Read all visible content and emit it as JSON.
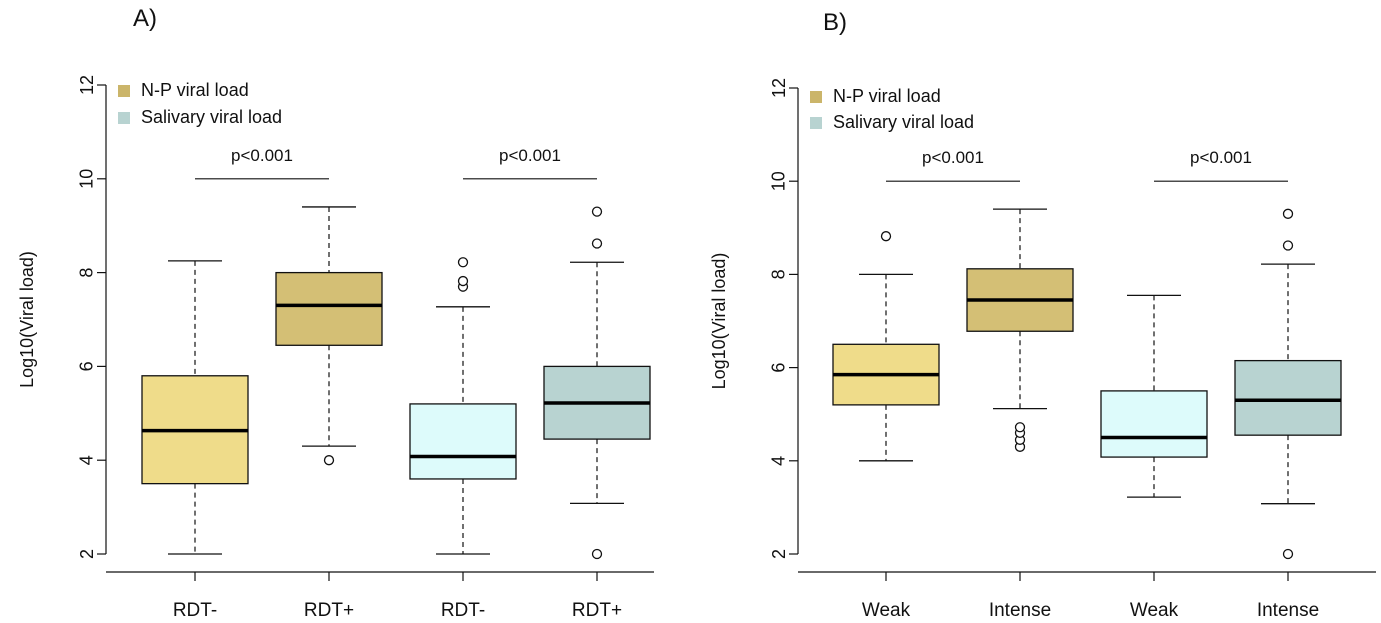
{
  "chart_data": [
    {
      "type": "boxplot",
      "panel_label": "A)",
      "ylabel": "Log10(Viral load)",
      "ylim": [
        2,
        12
      ],
      "yticks": [
        2,
        4,
        6,
        8,
        10,
        12
      ],
      "categories": [
        "RDT-",
        "RDT+",
        "RDT-",
        "RDT+"
      ],
      "legend": {
        "position": "top-left",
        "entries": [
          {
            "label": "N-P viral load",
            "color": "#cbb56a"
          },
          {
            "label": "Salivary viral load",
            "color": "#b8d3d1"
          }
        ]
      },
      "boxes": [
        {
          "category": "RDT-",
          "group": "N-P viral load",
          "color": "#efdc8a",
          "whisker_low": 2.0,
          "q1": 3.5,
          "median": 4.63,
          "q3": 5.8,
          "whisker_high": 8.25,
          "outliers": []
        },
        {
          "category": "RDT+",
          "group": "N-P viral load",
          "color": "#d4bf75",
          "whisker_low": 4.3,
          "q1": 6.45,
          "median": 7.3,
          "q3": 8.0,
          "whisker_high": 9.4,
          "outliers": [
            4.0
          ]
        },
        {
          "category": "RDT-",
          "group": "Salivary viral load",
          "color": "#ddfbfb",
          "whisker_low": 2.0,
          "q1": 3.6,
          "median": 4.08,
          "q3": 5.2,
          "whisker_high": 7.27,
          "outliers": [
            7.7,
            7.82,
            8.22
          ]
        },
        {
          "category": "RDT+",
          "group": "Salivary viral load",
          "color": "#b8d3d1",
          "whisker_low": 3.08,
          "q1": 4.45,
          "median": 5.22,
          "q3": 6.0,
          "whisker_high": 8.22,
          "outliers": [
            2.0,
            8.62,
            9.3
          ]
        }
      ],
      "comparisons": [
        {
          "pair": [
            0,
            1
          ],
          "label": "p<0.001",
          "y": 10.0
        },
        {
          "pair": [
            2,
            3
          ],
          "label": "p<0.001",
          "y": 10.0
        }
      ]
    },
    {
      "type": "boxplot",
      "panel_label": "B)",
      "ylabel": "Log10(Viral load)",
      "ylim": [
        2,
        12
      ],
      "yticks": [
        2,
        4,
        6,
        8,
        10,
        12
      ],
      "categories": [
        "Weak",
        "Intense",
        "Weak",
        "Intense"
      ],
      "legend": {
        "position": "top-left",
        "entries": [
          {
            "label": "N-P viral load",
            "color": "#cbb56a"
          },
          {
            "label": "Salivary viral load",
            "color": "#b8d3d1"
          }
        ]
      },
      "boxes": [
        {
          "category": "Weak",
          "group": "N-P viral load",
          "color": "#efdc8a",
          "whisker_low": 4.0,
          "q1": 5.2,
          "median": 5.85,
          "q3": 6.5,
          "whisker_high": 8.0,
          "outliers": [
            8.82
          ]
        },
        {
          "category": "Intense",
          "group": "N-P viral load",
          "color": "#d4bf75",
          "whisker_low": 5.12,
          "q1": 6.78,
          "median": 7.45,
          "q3": 8.12,
          "whisker_high": 9.4,
          "outliers": [
            4.3,
            4.45,
            4.6,
            4.72
          ]
        },
        {
          "category": "Weak",
          "group": "Salivary viral load",
          "color": "#ddfbfb",
          "whisker_low": 3.22,
          "q1": 4.08,
          "median": 4.5,
          "q3": 5.5,
          "whisker_high": 7.55,
          "outliers": []
        },
        {
          "category": "Intense",
          "group": "Salivary viral load",
          "color": "#b8d3d1",
          "whisker_low": 3.08,
          "q1": 4.55,
          "median": 5.3,
          "q3": 6.15,
          "whisker_high": 8.22,
          "outliers": [
            2.0,
            8.62,
            9.3
          ]
        }
      ],
      "comparisons": [
        {
          "pair": [
            0,
            1
          ],
          "label": "p<0.001",
          "y": 10.0
        },
        {
          "pair": [
            2,
            3
          ],
          "label": "p<0.001",
          "y": 10.0
        }
      ]
    }
  ]
}
